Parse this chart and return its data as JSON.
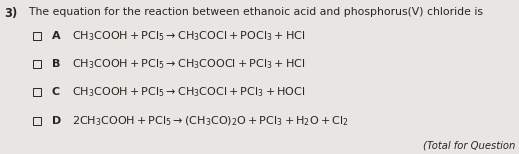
{
  "title_prefix": "3)",
  "title_text": "  The equation for the reaction between ethanoic acid and phosphorus(V) chloride is",
  "background_color": "#e8e6e3",
  "text_color": "#2a2520",
  "options": [
    {
      "letter": "A",
      "equation_parts": [
        [
          "CH",
          "3",
          "COOH + PCl",
          "5",
          " → CH",
          "3",
          "COCl + POCl",
          "3",
          " + HCl"
        ]
      ]
    },
    {
      "letter": "B",
      "equation_parts": [
        [
          "CH",
          "3",
          "COOH + PCl",
          "5",
          " → CH",
          "3",
          "COOCl + PCl",
          "3",
          " + HCl"
        ]
      ]
    },
    {
      "letter": "C",
      "equation_parts": [
        [
          "CH",
          "3",
          "COOH + PCl",
          "5",
          " → CH",
          "3",
          "COCl + PCl",
          "3",
          " + HOCl"
        ]
      ]
    },
    {
      "letter": "D",
      "equation_parts": [
        [
          "2CH",
          "3",
          "COOH + PCl",
          "5",
          " → (CH",
          "3",
          "CO)",
          "2",
          "O + PCl",
          "3",
          " + H",
          "2",
          "O + Cl",
          "2"
        ]
      ]
    }
  ],
  "footer": "(Total for Question",
  "title_fontsize": 7.8,
  "option_fontsize": 8.0,
  "footer_fontsize": 7.2,
  "fig_width": 5.19,
  "fig_height": 1.54,
  "dpi": 100
}
